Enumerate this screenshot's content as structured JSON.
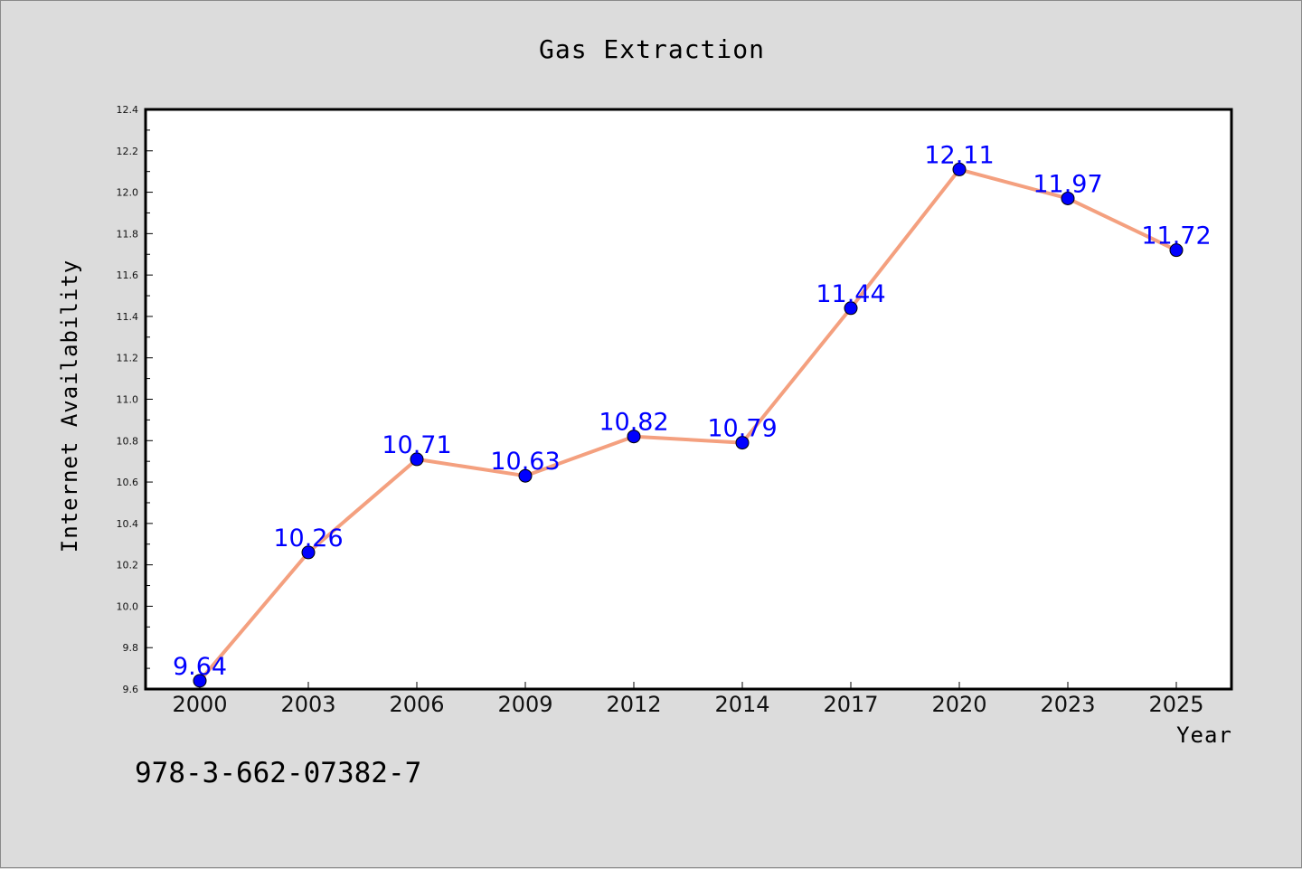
{
  "colors": {
    "background": "#dcdcdc",
    "plot_background": "#ffffff",
    "line": "#f4a07f",
    "marker": "#0000ff",
    "data_label": "#0000ff",
    "text": "#111111"
  },
  "footer": {
    "isbn": "978-3-662-07382-7"
  },
  "chart_data": {
    "type": "line",
    "title": "Gas Extraction",
    "xlabel": "Year",
    "ylabel": "Internet Availability",
    "categories": [
      "2000",
      "2003",
      "2006",
      "2009",
      "2012",
      "2014",
      "2017",
      "2020",
      "2023",
      "2025"
    ],
    "series": [
      {
        "values": [
          9.64,
          10.26,
          10.71,
          10.63,
          10.82,
          10.79,
          11.44,
          12.11,
          11.97,
          11.72
        ]
      }
    ],
    "data_labels": [
      "9.64",
      "10.26",
      "10.71",
      "10.63",
      "10.82",
      "10.79",
      "11.44",
      "12.11",
      "11.97",
      "11.72"
    ],
    "ylim": [
      9.6,
      12.4
    ],
    "yticks": [
      "9.6",
      "9.8",
      "10.0",
      "10.2",
      "10.4",
      "10.6",
      "10.8",
      "11.0",
      "11.2",
      "11.4",
      "11.6",
      "11.8",
      "12.0",
      "12.2",
      "12.4"
    ],
    "grid": false,
    "legend": "none"
  }
}
